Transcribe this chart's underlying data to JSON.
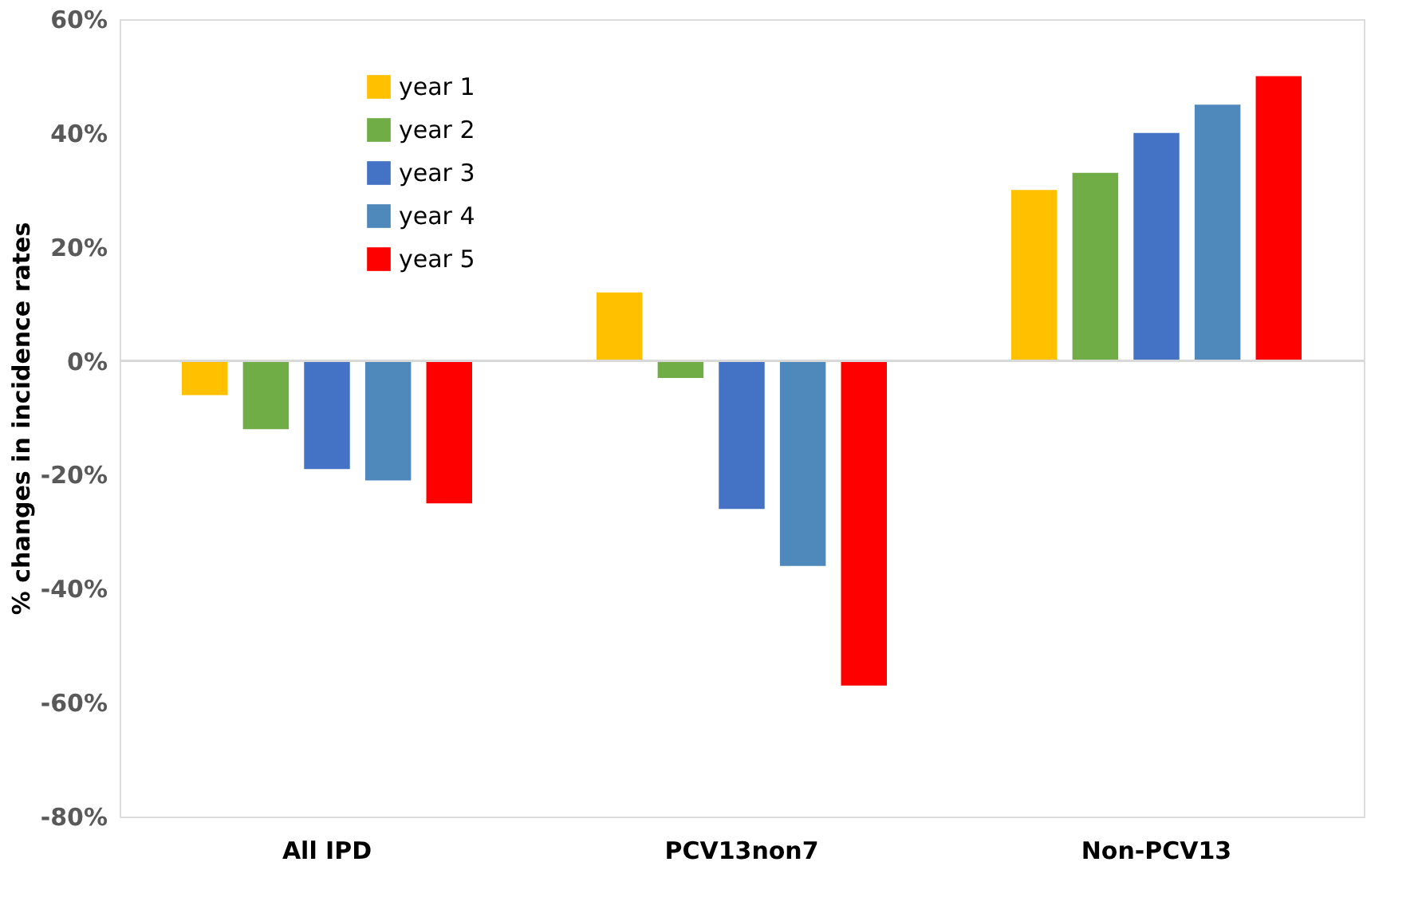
{
  "chart_data": {
    "type": "bar",
    "ylabel": "% changes in incidence rates",
    "categories": [
      "All IPD",
      "PCV13non7",
      "Non-PCV13"
    ],
    "series": [
      {
        "name": "year 1",
        "color": "#ffc000",
        "values": [
          -6,
          12,
          30
        ]
      },
      {
        "name": "year 2",
        "color": "#70ad47",
        "values": [
          -12,
          -3,
          33
        ]
      },
      {
        "name": "year 3",
        "color": "#4472c4",
        "values": [
          -19,
          -26,
          40
        ]
      },
      {
        "name": "year 4",
        "color": "#4f88bb",
        "values": [
          -21,
          -36,
          45
        ]
      },
      {
        "name": "year 5",
        "color": "#ff0000",
        "values": [
          -25,
          -57,
          50
        ]
      }
    ],
    "ylim": [
      -80,
      60
    ],
    "yticks": [
      {
        "value": -80,
        "label": "-80%"
      },
      {
        "value": -60,
        "label": "-60%"
      },
      {
        "value": -40,
        "label": "-40%"
      },
      {
        "value": -20,
        "label": "-20%"
      },
      {
        "value": 0,
        "label": "0%"
      },
      {
        "value": 20,
        "label": "20%"
      },
      {
        "value": 40,
        "label": "40%"
      },
      {
        "value": 60,
        "label": "60%"
      }
    ],
    "ref_lines": [
      {
        "axis": "y",
        "value": 0,
        "color": "#d9d9d9"
      }
    ],
    "grid": false,
    "legend": "top left"
  }
}
